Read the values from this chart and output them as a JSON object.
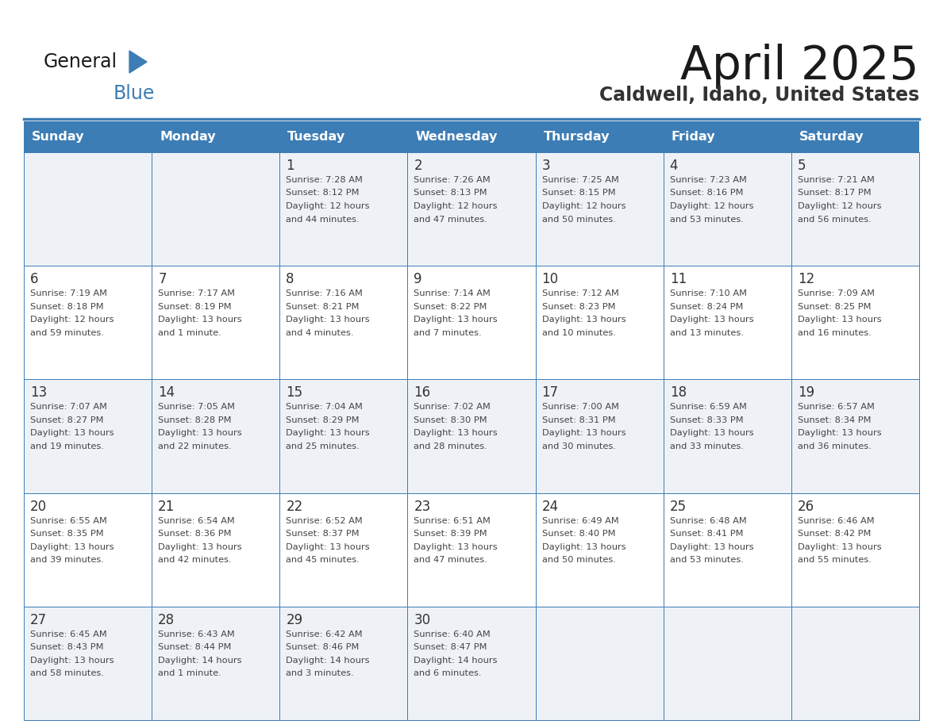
{
  "title": "April 2025",
  "subtitle": "Caldwell, Idaho, United States",
  "header_bg_color": "#3d7db5",
  "header_text_color": "#ffffff",
  "day_headers": [
    "Sunday",
    "Monday",
    "Tuesday",
    "Wednesday",
    "Thursday",
    "Friday",
    "Saturday"
  ],
  "cell_bg_row0": "#eef2f7",
  "cell_bg_row1": "#ffffff",
  "cell_border_color": "#3d7db5",
  "day_number_color": "#333333",
  "text_color": "#444444",
  "title_color": "#1a1a1a",
  "subtitle_color": "#333333",
  "logo_black": "#1a1a1a",
  "logo_blue": "#3d7db5",
  "weeks": [
    [
      {
        "day": null,
        "data": null
      },
      {
        "day": null,
        "data": null
      },
      {
        "day": 1,
        "data": "Sunrise: 7:28 AM\nSunset: 8:12 PM\nDaylight: 12 hours\nand 44 minutes."
      },
      {
        "day": 2,
        "data": "Sunrise: 7:26 AM\nSunset: 8:13 PM\nDaylight: 12 hours\nand 47 minutes."
      },
      {
        "day": 3,
        "data": "Sunrise: 7:25 AM\nSunset: 8:15 PM\nDaylight: 12 hours\nand 50 minutes."
      },
      {
        "day": 4,
        "data": "Sunrise: 7:23 AM\nSunset: 8:16 PM\nDaylight: 12 hours\nand 53 minutes."
      },
      {
        "day": 5,
        "data": "Sunrise: 7:21 AM\nSunset: 8:17 PM\nDaylight: 12 hours\nand 56 minutes."
      }
    ],
    [
      {
        "day": 6,
        "data": "Sunrise: 7:19 AM\nSunset: 8:18 PM\nDaylight: 12 hours\nand 59 minutes."
      },
      {
        "day": 7,
        "data": "Sunrise: 7:17 AM\nSunset: 8:19 PM\nDaylight: 13 hours\nand 1 minute."
      },
      {
        "day": 8,
        "data": "Sunrise: 7:16 AM\nSunset: 8:21 PM\nDaylight: 13 hours\nand 4 minutes."
      },
      {
        "day": 9,
        "data": "Sunrise: 7:14 AM\nSunset: 8:22 PM\nDaylight: 13 hours\nand 7 minutes."
      },
      {
        "day": 10,
        "data": "Sunrise: 7:12 AM\nSunset: 8:23 PM\nDaylight: 13 hours\nand 10 minutes."
      },
      {
        "day": 11,
        "data": "Sunrise: 7:10 AM\nSunset: 8:24 PM\nDaylight: 13 hours\nand 13 minutes."
      },
      {
        "day": 12,
        "data": "Sunrise: 7:09 AM\nSunset: 8:25 PM\nDaylight: 13 hours\nand 16 minutes."
      }
    ],
    [
      {
        "day": 13,
        "data": "Sunrise: 7:07 AM\nSunset: 8:27 PM\nDaylight: 13 hours\nand 19 minutes."
      },
      {
        "day": 14,
        "data": "Sunrise: 7:05 AM\nSunset: 8:28 PM\nDaylight: 13 hours\nand 22 minutes."
      },
      {
        "day": 15,
        "data": "Sunrise: 7:04 AM\nSunset: 8:29 PM\nDaylight: 13 hours\nand 25 minutes."
      },
      {
        "day": 16,
        "data": "Sunrise: 7:02 AM\nSunset: 8:30 PM\nDaylight: 13 hours\nand 28 minutes."
      },
      {
        "day": 17,
        "data": "Sunrise: 7:00 AM\nSunset: 8:31 PM\nDaylight: 13 hours\nand 30 minutes."
      },
      {
        "day": 18,
        "data": "Sunrise: 6:59 AM\nSunset: 8:33 PM\nDaylight: 13 hours\nand 33 minutes."
      },
      {
        "day": 19,
        "data": "Sunrise: 6:57 AM\nSunset: 8:34 PM\nDaylight: 13 hours\nand 36 minutes."
      }
    ],
    [
      {
        "day": 20,
        "data": "Sunrise: 6:55 AM\nSunset: 8:35 PM\nDaylight: 13 hours\nand 39 minutes."
      },
      {
        "day": 21,
        "data": "Sunrise: 6:54 AM\nSunset: 8:36 PM\nDaylight: 13 hours\nand 42 minutes."
      },
      {
        "day": 22,
        "data": "Sunrise: 6:52 AM\nSunset: 8:37 PM\nDaylight: 13 hours\nand 45 minutes."
      },
      {
        "day": 23,
        "data": "Sunrise: 6:51 AM\nSunset: 8:39 PM\nDaylight: 13 hours\nand 47 minutes."
      },
      {
        "day": 24,
        "data": "Sunrise: 6:49 AM\nSunset: 8:40 PM\nDaylight: 13 hours\nand 50 minutes."
      },
      {
        "day": 25,
        "data": "Sunrise: 6:48 AM\nSunset: 8:41 PM\nDaylight: 13 hours\nand 53 minutes."
      },
      {
        "day": 26,
        "data": "Sunrise: 6:46 AM\nSunset: 8:42 PM\nDaylight: 13 hours\nand 55 minutes."
      }
    ],
    [
      {
        "day": 27,
        "data": "Sunrise: 6:45 AM\nSunset: 8:43 PM\nDaylight: 13 hours\nand 58 minutes."
      },
      {
        "day": 28,
        "data": "Sunrise: 6:43 AM\nSunset: 8:44 PM\nDaylight: 14 hours\nand 1 minute."
      },
      {
        "day": 29,
        "data": "Sunrise: 6:42 AM\nSunset: 8:46 PM\nDaylight: 14 hours\nand 3 minutes."
      },
      {
        "day": 30,
        "data": "Sunrise: 6:40 AM\nSunset: 8:47 PM\nDaylight: 14 hours\nand 6 minutes."
      },
      {
        "day": null,
        "data": null
      },
      {
        "day": null,
        "data": null
      },
      {
        "day": null,
        "data": null
      }
    ]
  ],
  "fig_width": 11.88,
  "fig_height": 9.18,
  "dpi": 100
}
